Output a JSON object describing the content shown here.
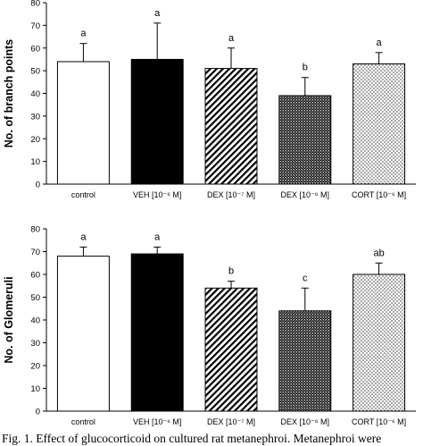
{
  "chart_data": [
    {
      "type": "bar",
      "ylabel": "No. of branch points",
      "ylim": [
        0,
        80
      ],
      "yticks": [
        "0",
        "10",
        "20",
        "30",
        "40",
        "50",
        "60",
        "70",
        "80"
      ],
      "categories": [
        "control",
        "VEH [10⁻⁶ M]",
        "DEX [10⁻⁷ M]",
        "DEX [10⁻⁶ M]",
        "CORT [10⁻⁶ M]"
      ],
      "values": [
        54,
        55,
        51,
        39,
        53
      ],
      "errors": [
        8,
        16,
        9,
        8,
        5
      ],
      "labels": [
        "a",
        "a",
        "a",
        "b",
        "a"
      ],
      "fills": [
        "white",
        "black",
        "diagonal",
        "crosshatch",
        "dots"
      ],
      "grid": false
    },
    {
      "type": "bar",
      "ylabel": "No. of Glomeruli",
      "ylim": [
        0,
        80
      ],
      "yticks": [
        "0",
        "10",
        "20",
        "30",
        "40",
        "50",
        "60",
        "70",
        "80"
      ],
      "categories": [
        "control",
        "VEH [10⁻⁶ M]",
        "DEX [10⁻⁷ M]",
        "DEX [10⁻⁶ M]",
        "CORT [10⁻⁶ M]"
      ],
      "values": [
        68,
        69,
        54,
        44,
        60
      ],
      "errors": [
        4,
        3,
        3,
        10,
        5
      ],
      "labels": [
        "a",
        "a",
        "b",
        "c",
        "ab"
      ],
      "fills": [
        "white",
        "black",
        "diagonal",
        "crosshatch",
        "dots"
      ],
      "grid": false
    }
  ],
  "caption": "Fig. 1.  Effect of glucocorticoid on cultured rat metanephroi. Metanephroi were"
}
